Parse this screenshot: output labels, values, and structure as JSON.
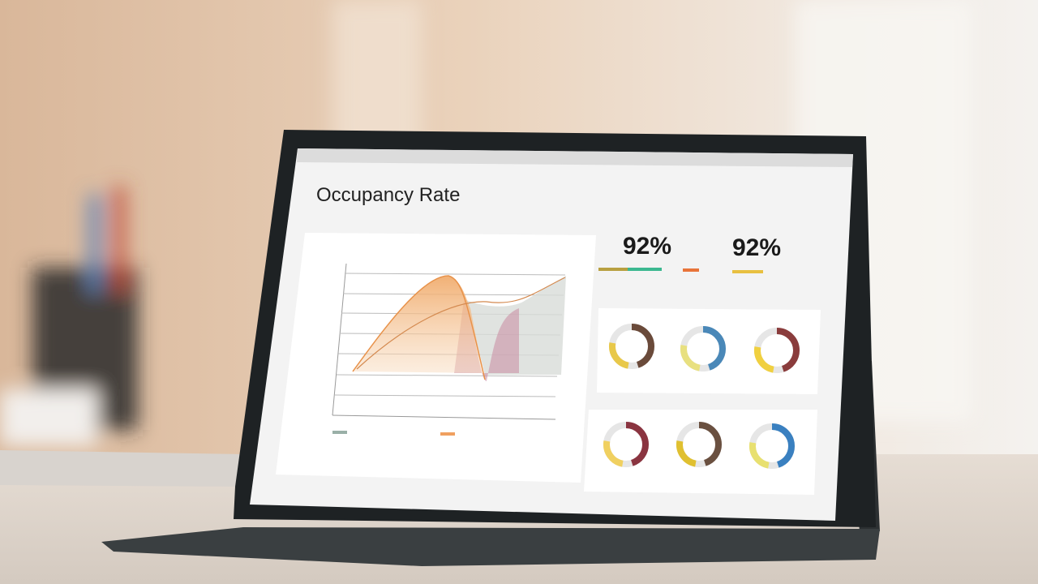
{
  "screen": {
    "title": "Occupancy Rate",
    "stats": [
      {
        "value": "92%"
      },
      {
        "value": "92%"
      }
    ]
  }
}
